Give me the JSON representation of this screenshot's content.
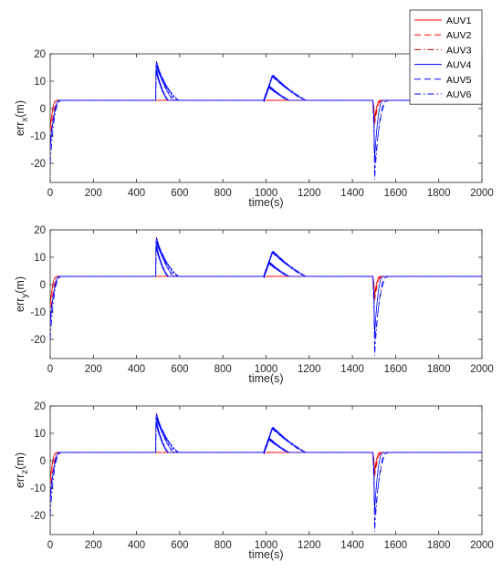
{
  "chart_data": [
    {
      "type": "line",
      "xlabel": "time(s)",
      "ylabel_main": "err",
      "ylabel_sub": "x",
      "ylabel_unit": "(m)",
      "xlim": [
        0,
        2000
      ],
      "ylim": [
        -27,
        20
      ],
      "xticks": [
        "0",
        "200",
        "400",
        "600",
        "800",
        "1000",
        "1200",
        "1400",
        "1600",
        "1800",
        "2000"
      ],
      "yticks": [
        "20",
        "10",
        "0",
        "-10",
        "-20"
      ],
      "grid": false,
      "legend": {
        "placement": "top-right",
        "entries": [
          "AUV1",
          "AUV2",
          "AUV3",
          "AUV4",
          "AUV5",
          "AUV6"
        ]
      }
    },
    {
      "type": "line",
      "xlabel": "time(s)",
      "ylabel_main": "err",
      "ylabel_sub": "y",
      "ylabel_unit": "(m)",
      "xlim": [
        0,
        2000
      ],
      "ylim": [
        -27,
        20
      ],
      "xticks": [
        "0",
        "200",
        "400",
        "600",
        "800",
        "1000",
        "1200",
        "1400",
        "1600",
        "1800",
        "2000"
      ],
      "yticks": [
        "20",
        "10",
        "0",
        "-10",
        "-20"
      ],
      "grid": false
    },
    {
      "type": "line",
      "xlabel": "time(s)",
      "ylabel_main": "err",
      "ylabel_sub": "z",
      "ylabel_unit": "(m)",
      "xlim": [
        0,
        2000
      ],
      "ylim": [
        -27,
        20
      ],
      "xticks": [
        "0",
        "200",
        "400",
        "600",
        "800",
        "1000",
        "1200",
        "1400",
        "1600",
        "1800",
        "2000"
      ],
      "yticks": [
        "20",
        "10",
        "0",
        "-10",
        "-20"
      ],
      "grid": false
    }
  ],
  "series": [
    {
      "name": "AUV1",
      "color": "#ff0000",
      "dash": "solid",
      "steady": 3,
      "start": -8,
      "settle": 30,
      "spike1": {
        "t": 490,
        "peak": 3,
        "decay": 60
      },
      "spike2": {
        "t": 990,
        "peak": 3,
        "decay": 120
      },
      "dip": {
        "t": 1500,
        "min": -4,
        "recover": 30
      }
    },
    {
      "name": "AUV2",
      "color": "#ff0000",
      "dash": "dashed",
      "steady": 3,
      "start": -12,
      "settle": 40,
      "spike1": {
        "t": 490,
        "peak": 3,
        "decay": 80
      },
      "spike2": {
        "t": 990,
        "peak": 3,
        "decay": 140
      },
      "dip": {
        "t": 1500,
        "min": -6,
        "recover": 40
      }
    },
    {
      "name": "AUV3",
      "color": "#cc0000",
      "dash": "dashdot",
      "steady": 3,
      "start": -6,
      "settle": 35,
      "spike1": {
        "t": 490,
        "peak": 3,
        "decay": 90
      },
      "spike2": {
        "t": 990,
        "peak": 3,
        "decay": 150
      },
      "dip": {
        "t": 1500,
        "min": -5,
        "recover": 35
      }
    },
    {
      "name": "AUV4",
      "color": "#0000ff",
      "dash": "solid",
      "steady": 3,
      "start": -15,
      "settle": 45,
      "spike1": {
        "t": 490,
        "peak": 14,
        "decay": 60
      },
      "spike2": {
        "t": 990,
        "peak": 8,
        "decay": 120
      },
      "dip": {
        "t": 1500,
        "min": -18,
        "recover": 45
      }
    },
    {
      "name": "AUV5",
      "color": "#0000ff",
      "dash": "dashed",
      "steady": 3,
      "start": -12,
      "settle": 55,
      "spike1": {
        "t": 490,
        "peak": 16,
        "decay": 110
      },
      "spike2": {
        "t": 990,
        "peak": 12,
        "decay": 200
      },
      "dip": {
        "t": 1500,
        "min": -22,
        "recover": 70
      }
    },
    {
      "name": "AUV6",
      "color": "#0000ff",
      "dash": "dashdot",
      "steady": 3,
      "start": -20,
      "settle": 50,
      "spike1": {
        "t": 490,
        "peak": 17,
        "decay": 90
      },
      "spike2": {
        "t": 990,
        "peak": 12,
        "decay": 200
      },
      "dip": {
        "t": 1500,
        "min": -26,
        "recover": 60
      }
    }
  ]
}
